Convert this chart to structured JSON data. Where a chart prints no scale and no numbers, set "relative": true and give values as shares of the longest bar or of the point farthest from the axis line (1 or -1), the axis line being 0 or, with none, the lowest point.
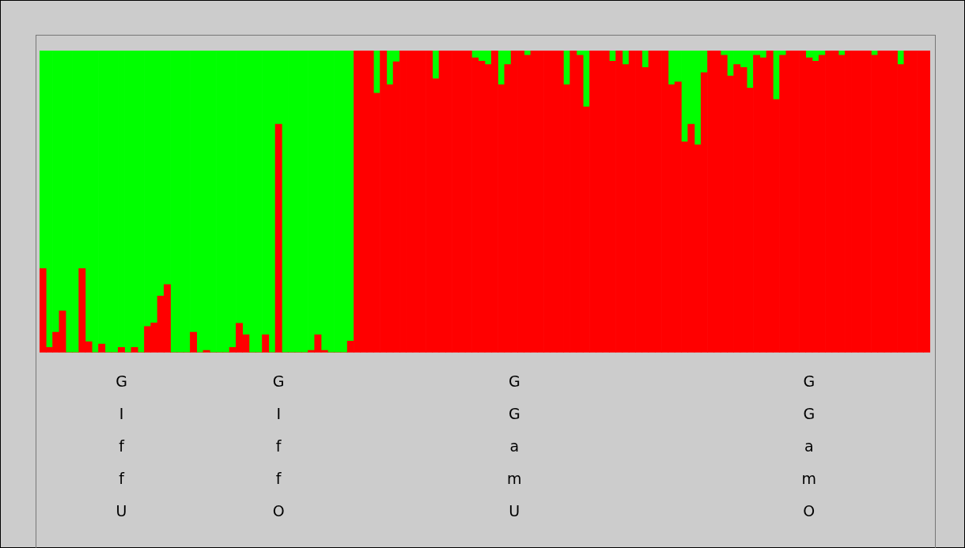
{
  "chart_data": {
    "type": "bar",
    "stacked": true,
    "relative": true,
    "grid": false,
    "legend": false,
    "categories": [
      null,
      null,
      null,
      null,
      null,
      null,
      null,
      null,
      null,
      null,
      null,
      null,
      "GIffU",
      null,
      null,
      null,
      null,
      null,
      null,
      null,
      null,
      null,
      null,
      null,
      null,
      null,
      null,
      null,
      null,
      null,
      null,
      null,
      null,
      null,
      null,
      null,
      "GIffO",
      null,
      null,
      null,
      null,
      null,
      null,
      null,
      null,
      null,
      null,
      null,
      null,
      null,
      null,
      null,
      null,
      null,
      null,
      null,
      null,
      null,
      null,
      null,
      null,
      null,
      null,
      null,
      null,
      null,
      null,
      null,
      null,
      null,
      null,
      null,
      "GGamU",
      null,
      null,
      null,
      null,
      null,
      null,
      null,
      null,
      null,
      null,
      null,
      null,
      null,
      null,
      null,
      null,
      null,
      null,
      null,
      null,
      null,
      null,
      null,
      null,
      null,
      null,
      null,
      null,
      null,
      null,
      null,
      null,
      null,
      null,
      null,
      null,
      null,
      null,
      null,
      null,
      null,
      null,
      null,
      null,
      "GGamO",
      null,
      null,
      null,
      null,
      null,
      null,
      null,
      null,
      null,
      null,
      null,
      null,
      null,
      null,
      null,
      null,
      null,
      null
    ],
    "series": [
      {
        "color": "#ff0000",
        "values": [
          0.278,
          0.017,
          0.067,
          0.138,
          0,
          0,
          0.278,
          0.036,
          0,
          0.028,
          0,
          0,
          0.017,
          0,
          0.017,
          0,
          0.086,
          0.098,
          0.187,
          0.225,
          0,
          0,
          0,
          0.067,
          0,
          0.007,
          0,
          0,
          0,
          0.017,
          0.097,
          0.059,
          0,
          0,
          0.059,
          0,
          0.756,
          0,
          0,
          0,
          0,
          0.007,
          0.059,
          0.007,
          0,
          0,
          0,
          0.038,
          1,
          1,
          1,
          0.859,
          1,
          0.887,
          0.963,
          1,
          1,
          1,
          1,
          1,
          0.907,
          1,
          1,
          1,
          1,
          1,
          0.976,
          0.965,
          0.954,
          1,
          0.887,
          0.954,
          1,
          1,
          0.985,
          1,
          1,
          1,
          1,
          1,
          0.887,
          1,
          0.985,
          0.814,
          1,
          1,
          1,
          0.965,
          1,
          0.954,
          1,
          1,
          0.944,
          1,
          1,
          1,
          0.887,
          0.896,
          0.698,
          0.756,
          0.688,
          0.927,
          1,
          1,
          0.985,
          0.916,
          0.954,
          0.944,
          0.876,
          0.985,
          0.976,
          1,
          0.838,
          0.985,
          1,
          1,
          1,
          0.976,
          0.965,
          0.985,
          1,
          1,
          0.985,
          1,
          1,
          1,
          1,
          0.985,
          1,
          1,
          1,
          0.954,
          1,
          1,
          1,
          1
        ]
      },
      {
        "color": "#00ff00",
        "values": [
          0.722,
          0.983,
          0.933,
          0.862,
          1,
          1,
          0.722,
          0.964,
          1,
          0.972,
          1,
          1,
          0.983,
          1,
          0.983,
          1,
          0.914,
          0.902,
          0.813,
          0.775,
          1,
          1,
          1,
          0.933,
          1,
          0.993,
          1,
          1,
          1,
          0.983,
          0.903,
          0.941,
          1,
          1,
          0.941,
          1,
          0.244,
          1,
          1,
          1,
          1,
          0.993,
          0.941,
          0.993,
          1,
          1,
          1,
          0.962,
          0,
          0,
          0,
          0.141,
          0,
          0.113,
          0.037,
          0,
          0,
          0,
          0,
          0,
          0.093,
          0,
          0,
          0,
          0,
          0,
          0.024,
          0.035,
          0.046,
          0,
          0.113,
          0.046,
          0,
          0,
          0.015,
          0,
          0,
          0,
          0,
          0,
          0.113,
          0,
          0.015,
          0.186,
          0,
          0,
          0,
          0.035,
          0,
          0.046,
          0,
          0,
          0.056,
          0,
          0,
          0,
          0.113,
          0.104,
          0.302,
          0.244,
          0.312,
          0.073,
          0,
          0,
          0.015,
          0.084,
          0.046,
          0.056,
          0.124,
          0.015,
          0.024,
          0,
          0.162,
          0.015,
          0,
          0,
          0,
          0.024,
          0.035,
          0.015,
          0,
          0,
          0.015,
          0,
          0,
          0,
          0,
          0.015,
          0,
          0,
          0,
          0.046,
          0,
          0,
          0,
          0
        ]
      }
    ]
  }
}
